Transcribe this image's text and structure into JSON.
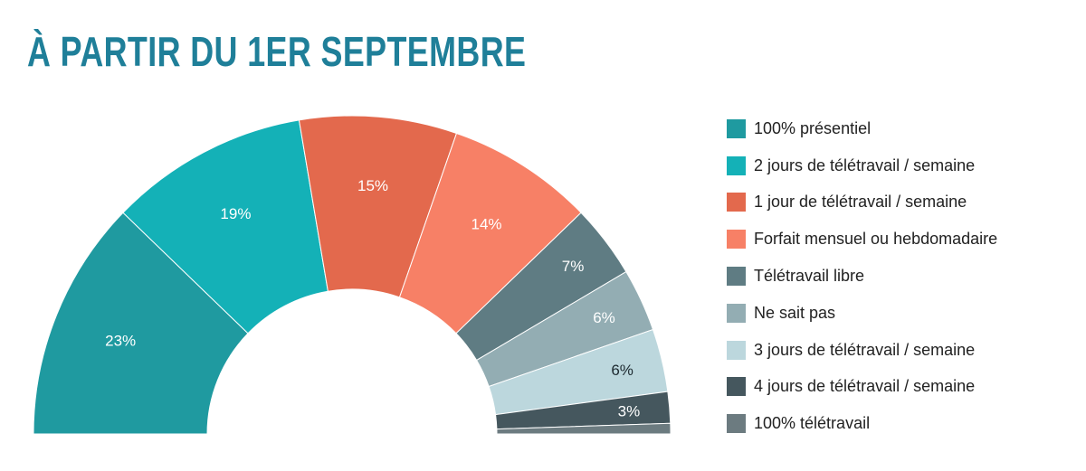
{
  "chart_data": {
    "type": "pie",
    "variant": "semi-donut",
    "title": "À PARTIR DU 1ER SEPTEMBRE",
    "legend_position": "right",
    "slices": [
      {
        "label": "100% présentiel",
        "value": 23,
        "data_label": "23%",
        "color": "#1f9aa0",
        "label_color": "#ffffff"
      },
      {
        "label": "2 jours de télétravail / semaine",
        "value": 19,
        "data_label": "19%",
        "color": "#14b1b7",
        "label_color": "#ffffff"
      },
      {
        "label": "1 jour de télétravail / semaine",
        "value": 15,
        "data_label": "15%",
        "color": "#e3694d",
        "label_color": "#ffffff"
      },
      {
        "label": "Forfait mensuel ou hebdomadaire",
        "value": 14,
        "data_label": "14%",
        "color": "#f78066",
        "label_color": "#ffffff"
      },
      {
        "label": "Télétravail libre",
        "value": 7,
        "data_label": "7%",
        "color": "#5f7c83",
        "label_color": "#ffffff"
      },
      {
        "label": "Ne sait pas",
        "value": 6,
        "data_label": "6%",
        "color": "#93adb3",
        "label_color": "#ffffff"
      },
      {
        "label": "3 jours de télétravail / semaine",
        "value": 6,
        "data_label": "6%",
        "color": "#bcd7dd",
        "label_color": "#1d2a30"
      },
      {
        "label": "4 jours de télétravail / semaine",
        "value": 3,
        "data_label": "3%",
        "color": "#45575e",
        "label_color": "#ffffff"
      },
      {
        "label": "100% télétravail",
        "value": 1,
        "data_label": "",
        "color": "#6c7b80",
        "label_color": "#ffffff"
      }
    ]
  }
}
